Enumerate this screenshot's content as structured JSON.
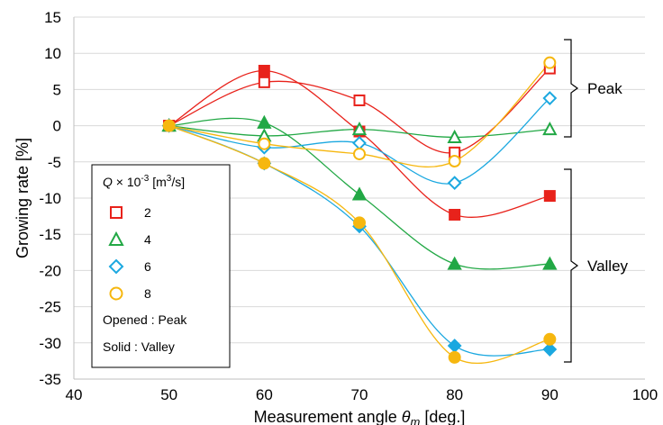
{
  "chart_data": {
    "type": "scatter",
    "xlabel_main": "Measurement angle ",
    "xlabel_symbol": "θ",
    "xlabel_sub": "m",
    "xlabel_unit": " [deg.]",
    "ylabel": "Growing rate [%]",
    "xlim": [
      40,
      100
    ],
    "ylim": [
      -35,
      15
    ],
    "xticks": [
      40,
      50,
      60,
      70,
      80,
      90,
      100
    ],
    "yticks": [
      15,
      10,
      5,
      0,
      -5,
      -10,
      -15,
      -20,
      -25,
      -30,
      -35
    ],
    "grid": "horizontal",
    "x": [
      50,
      60,
      70,
      80,
      90
    ],
    "series": [
      {
        "name": "2",
        "group": "Peak",
        "color": "#e8221b",
        "marker": "square",
        "filled": false,
        "values": [
          0,
          6,
          3.5,
          -3.7,
          7.9
        ]
      },
      {
        "name": "2",
        "group": "Valley",
        "color": "#e8221b",
        "marker": "square",
        "filled": true,
        "values": [
          0,
          7.6,
          -0.8,
          -12.3,
          -9.7
        ]
      },
      {
        "name": "4",
        "group": "Peak",
        "color": "#22a845",
        "marker": "triangle",
        "filled": false,
        "values": [
          0,
          -1.4,
          -0.5,
          -1.6,
          -0.5
        ]
      },
      {
        "name": "4",
        "group": "Valley",
        "color": "#22a845",
        "marker": "triangle",
        "filled": true,
        "values": [
          0,
          0.4,
          -9.5,
          -19.1,
          -19.1
        ]
      },
      {
        "name": "6",
        "group": "Peak",
        "color": "#1ba8e0",
        "marker": "diamond",
        "filled": false,
        "values": [
          0,
          -3,
          -2.4,
          -7.9,
          3.8
        ]
      },
      {
        "name": "6",
        "group": "Valley",
        "color": "#1ba8e0",
        "marker": "diamond",
        "filled": true,
        "values": [
          0,
          -5.2,
          -13.9,
          -30.4,
          -30.9
        ]
      },
      {
        "name": "8",
        "group": "Peak",
        "color": "#f6b70f",
        "marker": "circle",
        "filled": false,
        "values": [
          0,
          -2.5,
          -3.9,
          -4.9,
          8.7
        ]
      },
      {
        "name": "8",
        "group": "Valley",
        "color": "#f6b70f",
        "marker": "circle",
        "filled": true,
        "values": [
          0,
          -5.2,
          -13.4,
          -32,
          -29.5
        ]
      }
    ],
    "annotations": {
      "peak_label": "Peak",
      "valley_label": "Valley"
    },
    "legend": {
      "title_var": "Q",
      "title_rest": " × 10",
      "title_exp": "-3",
      "title_unit": " [m",
      "title_unit_exp": "3",
      "title_unit_end": "/s]",
      "entries": [
        {
          "label": "2",
          "color": "#e8221b",
          "marker": "square"
        },
        {
          "label": "4",
          "color": "#22a845",
          "marker": "triangle"
        },
        {
          "label": "6",
          "color": "#1ba8e0",
          "marker": "diamond"
        },
        {
          "label": "8",
          "color": "#f6b70f",
          "marker": "circle"
        }
      ],
      "note_opened": "Opened : Peak",
      "note_solid": "Solid : Valley",
      "placement": "lower-left"
    }
  }
}
